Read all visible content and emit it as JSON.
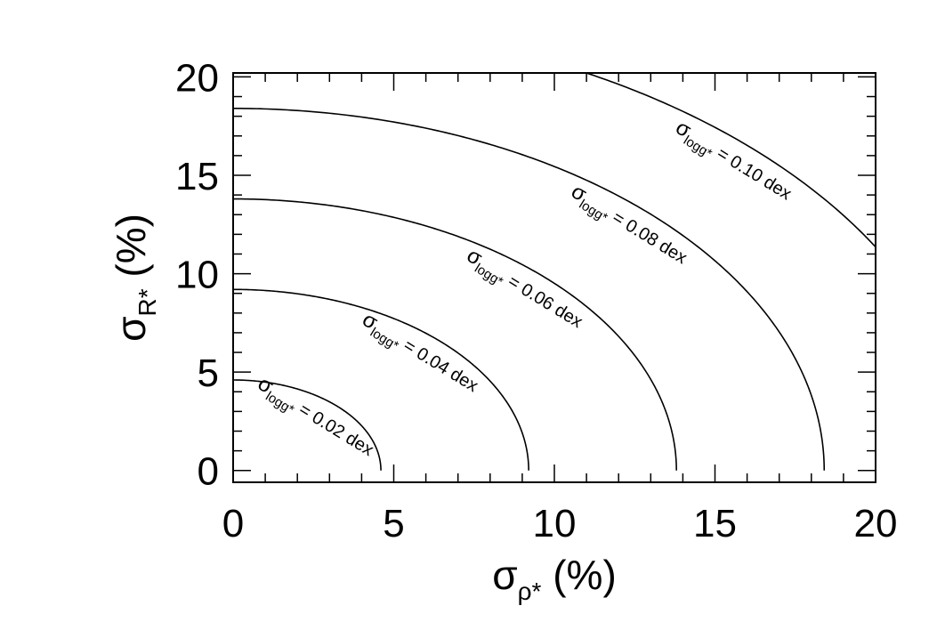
{
  "chart_data": {
    "type": "line",
    "title": "",
    "xlabel": {
      "symbol": "σ",
      "subscript": "ρ*",
      "suffix": " (%)"
    },
    "ylabel": {
      "symbol": "σ",
      "subscript": "R*",
      "suffix": " (%)"
    },
    "xlim": [
      0,
      20
    ],
    "ylim": [
      -0.6,
      20.2
    ],
    "xticks": [
      0,
      5,
      10,
      15,
      20
    ],
    "yticks": [
      0,
      5,
      10,
      15,
      20
    ],
    "x_minor_step": 1,
    "y_minor_step": 1,
    "grid": false,
    "legend": "none",
    "series": [
      {
        "log_g_error_dex": 0.02,
        "radius_pct": 4.6,
        "label": {
          "symbol": "σ",
          "subscript": "logg*",
          "text": " = 0.02 dex"
        }
      },
      {
        "log_g_error_dex": 0.04,
        "radius_pct": 9.2,
        "label": {
          "symbol": "σ",
          "subscript": "logg*",
          "text": " = 0.04 dex"
        }
      },
      {
        "log_g_error_dex": 0.06,
        "radius_pct": 13.8,
        "label": {
          "symbol": "σ",
          "subscript": "logg*",
          "text": " = 0.06 dex"
        }
      },
      {
        "log_g_error_dex": 0.08,
        "radius_pct": 18.4,
        "label": {
          "symbol": "σ",
          "subscript": "logg*",
          "text": " = 0.08 dex"
        }
      },
      {
        "log_g_error_dex": 0.1,
        "radius_pct": 23.0,
        "label": {
          "symbol": "σ",
          "subscript": "logg*",
          "text": " = 0.10 dex"
        }
      }
    ]
  }
}
